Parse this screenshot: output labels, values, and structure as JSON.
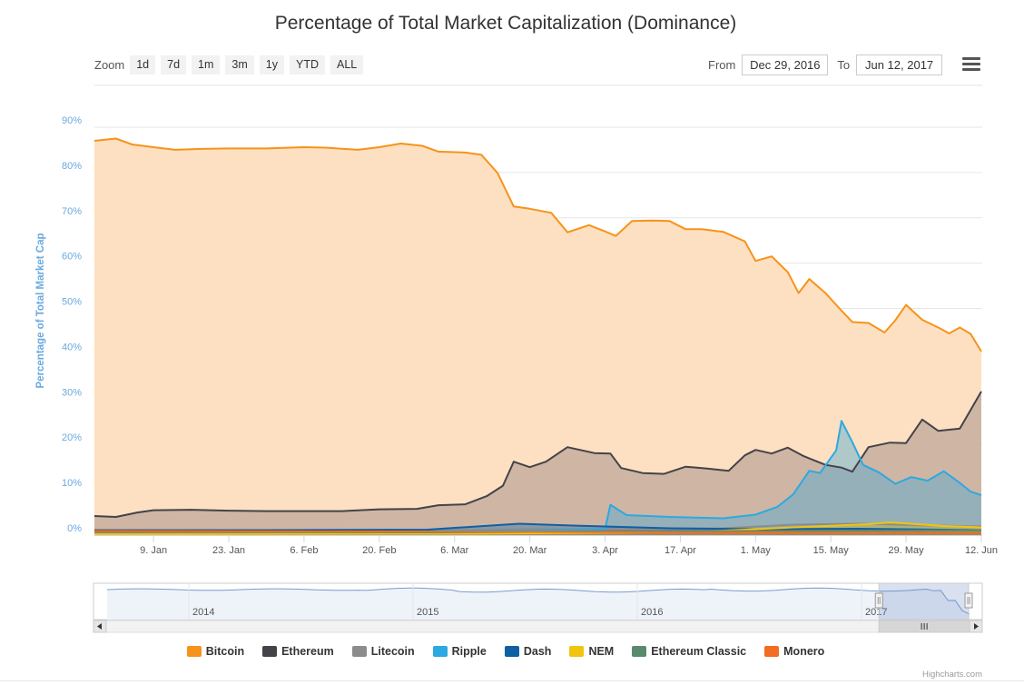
{
  "toolbar": {
    "zoom_label": "Zoom",
    "buttons": [
      "1d",
      "7d",
      "1m",
      "3m",
      "1y",
      "YTD",
      "ALL"
    ],
    "from_label": "From",
    "from_value": "Dec 29, 2016",
    "to_label": "To",
    "to_value": "Jun 12, 2017",
    "menu_icon": "hamburger-menu-icon"
  },
  "chart_data": {
    "type": "area",
    "title": "Percentage of Total Market Capitalization (Dominance)",
    "ylabel": "Percentage of Total Market Cap",
    "ylim": [
      0,
      90
    ],
    "yticks": [
      "0%",
      "10%",
      "20%",
      "30%",
      "40%",
      "50%",
      "60%",
      "70%",
      "80%",
      "90%"
    ],
    "x_range": [
      "2016-12-29",
      "2017-06-12"
    ],
    "xticks": [
      {
        "date": "2017-01-09",
        "label": "9. Jan"
      },
      {
        "date": "2017-01-23",
        "label": "23. Jan"
      },
      {
        "date": "2017-02-06",
        "label": "6. Feb"
      },
      {
        "date": "2017-02-20",
        "label": "20. Feb"
      },
      {
        "date": "2017-03-06",
        "label": "6. Mar"
      },
      {
        "date": "2017-03-20",
        "label": "20. Mar"
      },
      {
        "date": "2017-04-03",
        "label": "3. Apr"
      },
      {
        "date": "2017-04-17",
        "label": "17. Apr"
      },
      {
        "date": "2017-05-01",
        "label": "1. May"
      },
      {
        "date": "2017-05-15",
        "label": "15. May"
      },
      {
        "date": "2017-05-29",
        "label": "29. May"
      },
      {
        "date": "2017-06-12",
        "label": "12. Jun"
      }
    ],
    "grid": true,
    "legend_position": "bottom",
    "series": [
      {
        "name": "Bitcoin",
        "color": "#f7931a",
        "points": [
          [
            "2016-12-29",
            87.0
          ],
          [
            "2017-01-02",
            87.5
          ],
          [
            "2017-01-05",
            86.2
          ],
          [
            "2017-01-09",
            85.6
          ],
          [
            "2017-01-13",
            85.0
          ],
          [
            "2017-01-18",
            85.2
          ],
          [
            "2017-01-23",
            85.3
          ],
          [
            "2017-01-30",
            85.3
          ],
          [
            "2017-02-06",
            85.6
          ],
          [
            "2017-02-10",
            85.5
          ],
          [
            "2017-02-16",
            85.0
          ],
          [
            "2017-02-20",
            85.6
          ],
          [
            "2017-02-24",
            86.4
          ],
          [
            "2017-02-28",
            85.9
          ],
          [
            "2017-03-03",
            84.6
          ],
          [
            "2017-03-08",
            84.4
          ],
          [
            "2017-03-11",
            83.9
          ],
          [
            "2017-03-14",
            79.9
          ],
          [
            "2017-03-17",
            72.5
          ],
          [
            "2017-03-20",
            72.0
          ],
          [
            "2017-03-24",
            71.1
          ],
          [
            "2017-03-27",
            66.8
          ],
          [
            "2017-03-31",
            68.4
          ],
          [
            "2017-04-03",
            67.0
          ],
          [
            "2017-04-05",
            66.0
          ],
          [
            "2017-04-08",
            69.3
          ],
          [
            "2017-04-12",
            69.4
          ],
          [
            "2017-04-15",
            69.3
          ],
          [
            "2017-04-18",
            67.5
          ],
          [
            "2017-04-21",
            67.5
          ],
          [
            "2017-04-25",
            66.9
          ],
          [
            "2017-04-29",
            64.8
          ],
          [
            "2017-05-01",
            60.5
          ],
          [
            "2017-05-04",
            61.5
          ],
          [
            "2017-05-07",
            58.0
          ],
          [
            "2017-05-09",
            53.4
          ],
          [
            "2017-05-11",
            56.5
          ],
          [
            "2017-05-14",
            53.4
          ],
          [
            "2017-05-17",
            49.5
          ],
          [
            "2017-05-19",
            47.0
          ],
          [
            "2017-05-22",
            46.8
          ],
          [
            "2017-05-25",
            44.7
          ],
          [
            "2017-05-27",
            47.4
          ],
          [
            "2017-05-29",
            50.8
          ],
          [
            "2017-06-01",
            47.5
          ],
          [
            "2017-06-04",
            45.8
          ],
          [
            "2017-06-06",
            44.5
          ],
          [
            "2017-06-08",
            45.8
          ],
          [
            "2017-06-10",
            44.4
          ],
          [
            "2017-06-12",
            40.5
          ]
        ]
      },
      {
        "name": "Ethereum",
        "color": "#434348",
        "points": [
          [
            "2016-12-29",
            4.2
          ],
          [
            "2017-01-02",
            4.0
          ],
          [
            "2017-01-06",
            5.0
          ],
          [
            "2017-01-09",
            5.5
          ],
          [
            "2017-01-16",
            5.6
          ],
          [
            "2017-01-23",
            5.4
          ],
          [
            "2017-01-30",
            5.3
          ],
          [
            "2017-02-06",
            5.3
          ],
          [
            "2017-02-13",
            5.3
          ],
          [
            "2017-02-20",
            5.7
          ],
          [
            "2017-02-27",
            5.8
          ],
          [
            "2017-03-03",
            6.6
          ],
          [
            "2017-03-08",
            6.8
          ],
          [
            "2017-03-12",
            8.6
          ],
          [
            "2017-03-15",
            10.9
          ],
          [
            "2017-03-17",
            16.2
          ],
          [
            "2017-03-20",
            15.0
          ],
          [
            "2017-03-23",
            16.2
          ],
          [
            "2017-03-27",
            19.4
          ],
          [
            "2017-04-01",
            18.1
          ],
          [
            "2017-04-04",
            18.0
          ],
          [
            "2017-04-06",
            14.8
          ],
          [
            "2017-04-10",
            13.7
          ],
          [
            "2017-04-14",
            13.5
          ],
          [
            "2017-04-18",
            15.1
          ],
          [
            "2017-04-22",
            14.7
          ],
          [
            "2017-04-26",
            14.2
          ],
          [
            "2017-04-29",
            17.6
          ],
          [
            "2017-05-01",
            18.8
          ],
          [
            "2017-05-04",
            18.0
          ],
          [
            "2017-05-07",
            19.3
          ],
          [
            "2017-05-10",
            17.4
          ],
          [
            "2017-05-14",
            15.5
          ],
          [
            "2017-05-17",
            14.9
          ],
          [
            "2017-05-19",
            14.0
          ],
          [
            "2017-05-22",
            19.4
          ],
          [
            "2017-05-26",
            20.4
          ],
          [
            "2017-05-29",
            20.3
          ],
          [
            "2017-06-01",
            25.5
          ],
          [
            "2017-06-04",
            23.0
          ],
          [
            "2017-06-08",
            23.5
          ],
          [
            "2017-06-10",
            27.6
          ],
          [
            "2017-06-12",
            31.7
          ]
        ]
      },
      {
        "name": "Litecoin",
        "color": "#8c8c8c",
        "points": [
          [
            "2016-12-29",
            1.2
          ],
          [
            "2017-03-01",
            1.0
          ],
          [
            "2017-03-20",
            1.3
          ],
          [
            "2017-04-25",
            1.5
          ],
          [
            "2017-05-08",
            2.3
          ],
          [
            "2017-05-20",
            2.5
          ],
          [
            "2017-06-03",
            2.1
          ],
          [
            "2017-06-12",
            1.9
          ]
        ]
      },
      {
        "name": "Ripple",
        "color": "#2ca9e1",
        "points": [
          [
            "2016-12-29",
            0.9
          ],
          [
            "2017-02-15",
            0.9
          ],
          [
            "2017-03-20",
            1.0
          ],
          [
            "2017-03-30",
            1.2
          ],
          [
            "2017-04-03",
            1.3
          ],
          [
            "2017-04-04",
            6.7
          ],
          [
            "2017-04-07",
            4.4
          ],
          [
            "2017-04-15",
            4.0
          ],
          [
            "2017-04-25",
            3.7
          ],
          [
            "2017-05-01",
            4.5
          ],
          [
            "2017-05-05",
            6.2
          ],
          [
            "2017-05-08",
            9.0
          ],
          [
            "2017-05-11",
            14.2
          ],
          [
            "2017-05-13",
            13.7
          ],
          [
            "2017-05-16",
            18.7
          ],
          [
            "2017-05-17",
            25.2
          ],
          [
            "2017-05-19",
            20.5
          ],
          [
            "2017-05-21",
            15.5
          ],
          [
            "2017-05-24",
            13.8
          ],
          [
            "2017-05-27",
            11.3
          ],
          [
            "2017-05-30",
            12.8
          ],
          [
            "2017-06-02",
            12.0
          ],
          [
            "2017-06-05",
            14.1
          ],
          [
            "2017-06-08",
            11.5
          ],
          [
            "2017-06-10",
            9.6
          ],
          [
            "2017-06-12",
            8.8
          ]
        ]
      },
      {
        "name": "Dash",
        "color": "#0f5fa3",
        "points": [
          [
            "2016-12-29",
            1.0
          ],
          [
            "2017-03-01",
            1.2
          ],
          [
            "2017-03-18",
            2.5
          ],
          [
            "2017-03-28",
            2.1
          ],
          [
            "2017-04-15",
            1.5
          ],
          [
            "2017-05-01",
            1.3
          ],
          [
            "2017-05-20",
            1.4
          ],
          [
            "2017-06-12",
            1.1
          ]
        ]
      },
      {
        "name": "NEM",
        "color": "#f1c40f",
        "points": [
          [
            "2016-12-29",
            0.2
          ],
          [
            "2017-03-10",
            0.3
          ],
          [
            "2017-04-20",
            0.7
          ],
          [
            "2017-05-10",
            1.8
          ],
          [
            "2017-05-22",
            2.4
          ],
          [
            "2017-05-26",
            2.8
          ],
          [
            "2017-06-05",
            2.0
          ],
          [
            "2017-06-12",
            1.7
          ]
        ]
      },
      {
        "name": "Ethereum Classic",
        "color": "#5a8a6e",
        "points": [
          [
            "2016-12-29",
            0.8
          ],
          [
            "2017-03-01",
            0.6
          ],
          [
            "2017-04-10",
            0.8
          ],
          [
            "2017-05-20",
            1.0
          ],
          [
            "2017-06-12",
            1.1
          ]
        ]
      },
      {
        "name": "Monero",
        "color": "#f36c21",
        "points": [
          [
            "2016-12-29",
            0.9
          ],
          [
            "2017-02-10",
            0.8
          ],
          [
            "2017-03-20",
            0.7
          ],
          [
            "2017-05-01",
            0.6
          ],
          [
            "2017-06-12",
            0.5
          ]
        ]
      }
    ]
  },
  "navigator": {
    "year_labels": [
      {
        "label": "2014",
        "frac": 0.16
      },
      {
        "label": "2015",
        "frac": 0.42
      },
      {
        "label": "2016",
        "frac": 0.68
      },
      {
        "label": "2017",
        "frac": 0.94
      }
    ],
    "selection": [
      0.955,
      1.0
    ],
    "scroll_left_icon": "arrow-left-icon",
    "scroll_right_icon": "arrow-right-icon",
    "grip_icon": "grip-icon"
  },
  "credits": "Highcharts.com"
}
